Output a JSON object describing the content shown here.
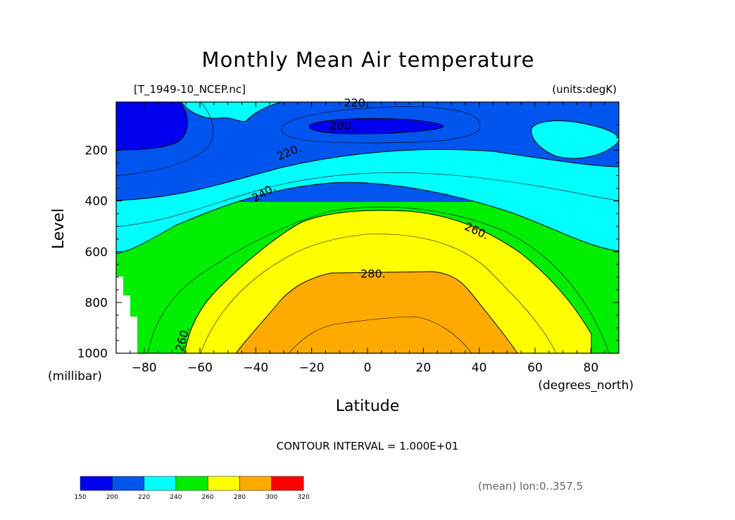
{
  "chart_data": {
    "type": "contour",
    "title": "Monthly Mean Air temperature",
    "source_label": "[T_1949-10_NCEP.nc]",
    "units_label": "(units:degK)",
    "xlabel": "Latitude",
    "x_units": "(degrees_north)",
    "ylabel": "Level",
    "y_units": "(millibar)",
    "xlim": [
      -90,
      90
    ],
    "ylim": [
      1000,
      10
    ],
    "y_inverted": true,
    "x_ticks": [
      {
        "value": -80,
        "label": "−80"
      },
      {
        "value": -60,
        "label": "−60"
      },
      {
        "value": -40,
        "label": "−40"
      },
      {
        "value": -20,
        "label": "−20"
      },
      {
        "value": 0,
        "label": "0"
      },
      {
        "value": 20,
        "label": "20"
      },
      {
        "value": 40,
        "label": "40"
      },
      {
        "value": 60,
        "label": "60"
      },
      {
        "value": 80,
        "label": "80"
      }
    ],
    "y_ticks": [
      {
        "value": 200,
        "label": "200"
      },
      {
        "value": 400,
        "label": "400"
      },
      {
        "value": 600,
        "label": "600"
      },
      {
        "value": 800,
        "label": "800"
      },
      {
        "value": 1000,
        "label": "1000"
      }
    ],
    "contour_interval_text": "CONTOUR INTERVAL = 1.000E+01",
    "contour_labels": [
      {
        "text": "220.",
        "lat": -4,
        "lev": 15,
        "angle": 0
      },
      {
        "text": "200.",
        "lat": -9,
        "lev": 105,
        "angle": 0
      },
      {
        "text": "220.",
        "lat": -28,
        "lev": 210,
        "angle": -22
      },
      {
        "text": "240.",
        "lat": -37,
        "lev": 370,
        "angle": -30
      },
      {
        "text": "260.",
        "lat": 39,
        "lev": 520,
        "angle": 25
      },
      {
        "text": "280.",
        "lat": 2,
        "lev": 690,
        "angle": 0
      },
      {
        "text": "260.",
        "lat": -66,
        "lev": 945,
        "angle": -75
      }
    ],
    "colorbar": {
      "levels": [
        "150",
        "200",
        "220",
        "240",
        "260",
        "280",
        "300",
        "320"
      ],
      "colors": [
        "#0000ee",
        "#0055ee",
        "#00ffff",
        "#00ee00",
        "#ffff00",
        "#ffaa00",
        "#ff0000"
      ]
    },
    "note": "(mean) lon:0..357.5"
  }
}
